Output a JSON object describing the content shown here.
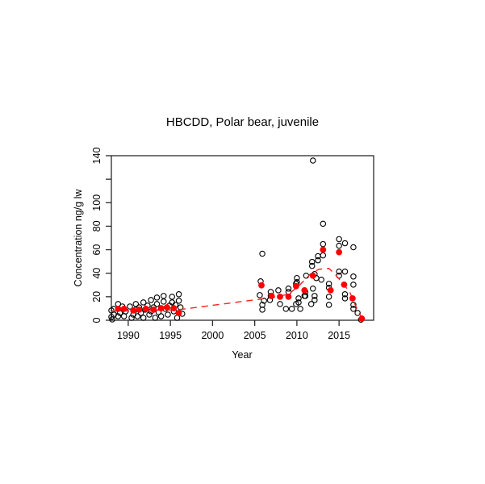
{
  "chart_data": {
    "type": "scatter",
    "title": "HBCDD, Polar bear, juvenile",
    "xlabel": "Year",
    "ylabel": "Concentration ng/g lw",
    "xlim": [
      1988,
      2019.1
    ],
    "ylim": [
      0,
      140
    ],
    "x_ticks": [
      1990,
      1995,
      2000,
      2005,
      2010,
      2015
    ],
    "x_tick_labels": [
      "1990",
      "1995",
      "2000",
      "2005",
      "2010",
      "2015"
    ],
    "y_ticks": [
      0,
      20,
      40,
      60,
      80,
      100,
      120,
      140
    ],
    "y_tick_labels": [
      "0",
      "20",
      "40",
      "60",
      "80",
      "100",
      "",
      "140"
    ],
    "grid": false,
    "legend": "none",
    "frame_color": "#2b2b2b",
    "series": [
      {
        "id": "samples",
        "marker": "circle-open",
        "color": "#000000",
        "points": [
          [
            1988.0,
            8.3
          ],
          [
            1988.0,
            2.8
          ],
          [
            1988.1,
            0.7
          ],
          [
            1988.3,
            9.7
          ],
          [
            1988.3,
            4.8
          ],
          [
            1988.8,
            13.8
          ],
          [
            1988.8,
            3.4
          ],
          [
            1989.0,
            6.2
          ],
          [
            1989.3,
            11.7
          ],
          [
            1989.5,
            3.4
          ],
          [
            1989.7,
            7.6
          ],
          [
            1990.2,
            11.7
          ],
          [
            1990.4,
            2.1
          ],
          [
            1990.6,
            4.8
          ],
          [
            1990.9,
            13.8
          ],
          [
            1990.9,
            9.0
          ],
          [
            1991.1,
            3.4
          ],
          [
            1991.3,
            11.0
          ],
          [
            1991.5,
            6.2
          ],
          [
            1991.8,
            15.2
          ],
          [
            1991.8,
            2.1
          ],
          [
            1992.0,
            9.0
          ],
          [
            1992.3,
            12.4
          ],
          [
            1992.5,
            4.8
          ],
          [
            1992.7,
            17.2
          ],
          [
            1992.7,
            7.6
          ],
          [
            1993.0,
            11.0
          ],
          [
            1993.2,
            2.1
          ],
          [
            1993.4,
            19.3
          ],
          [
            1993.4,
            13.8
          ],
          [
            1993.6,
            6.9
          ],
          [
            1993.9,
            3.4
          ],
          [
            1994.2,
            20.7
          ],
          [
            1994.2,
            15.9
          ],
          [
            1994.4,
            9.7
          ],
          [
            1994.7,
            4.8
          ],
          [
            1994.9,
            12.4
          ],
          [
            1995.2,
            20.0
          ],
          [
            1995.2,
            15.2
          ],
          [
            1995.4,
            7.6
          ],
          [
            1995.6,
            13.1
          ],
          [
            1995.8,
            2.1
          ],
          [
            1996.0,
            22.1
          ],
          [
            1996.0,
            16.6
          ],
          [
            1996.2,
            11.0
          ],
          [
            1996.4,
            5.5
          ],
          [
            2005.6,
            21.4
          ],
          [
            2005.7,
            33.1
          ],
          [
            2005.9,
            56.6
          ],
          [
            2005.9,
            13.1
          ],
          [
            2005.9,
            9.0
          ],
          [
            2006.1,
            16.6
          ],
          [
            2006.8,
            17.2
          ],
          [
            2006.9,
            24.1
          ],
          [
            2006.9,
            20.7
          ],
          [
            2007.8,
            25.5
          ],
          [
            2008.0,
            13.8
          ],
          [
            2008.7,
            9.7
          ],
          [
            2009.0,
            26.9
          ],
          [
            2009.0,
            24.1
          ],
          [
            2009.4,
            9.7
          ],
          [
            2009.9,
            31.0
          ],
          [
            2009.9,
            13.8
          ],
          [
            2010.0,
            35.9
          ],
          [
            2010.0,
            32.4
          ],
          [
            2010.2,
            18.6
          ],
          [
            2010.2,
            15.2
          ],
          [
            2010.4,
            9.7
          ],
          [
            2010.9,
            20.7
          ],
          [
            2011.0,
            24.1
          ],
          [
            2011.0,
            20.7
          ],
          [
            2011.1,
            37.9
          ],
          [
            2011.7,
            13.8
          ],
          [
            2011.8,
            49.7
          ],
          [
            2011.8,
            46.2
          ],
          [
            2011.9,
            26.9
          ],
          [
            2011.9,
            135.9
          ],
          [
            2012.1,
            39.3
          ],
          [
            2012.1,
            20.7
          ],
          [
            2012.1,
            17.2
          ],
          [
            2012.3,
            35.9
          ],
          [
            2012.5,
            54.5
          ],
          [
            2012.5,
            51.0
          ],
          [
            2012.9,
            34.5
          ],
          [
            2013.1,
            82.1
          ],
          [
            2013.1,
            64.8
          ],
          [
            2013.1,
            55.2
          ],
          [
            2013.8,
            31.0
          ],
          [
            2013.8,
            27.6
          ],
          [
            2013.8,
            20.0
          ],
          [
            2013.8,
            13.1
          ],
          [
            2015.0,
            69.0
          ],
          [
            2015.0,
            63.4
          ],
          [
            2015.0,
            41.4
          ],
          [
            2015.0,
            37.9
          ],
          [
            2015.7,
            65.5
          ],
          [
            2015.7,
            41.4
          ],
          [
            2015.7,
            22.1
          ],
          [
            2015.7,
            18.6
          ],
          [
            2016.7,
            62.1
          ],
          [
            2016.7,
            37.2
          ],
          [
            2016.7,
            30.3
          ],
          [
            2016.7,
            13.1
          ],
          [
            2016.7,
            9.7
          ],
          [
            2017.2,
            6.2
          ],
          [
            2017.6,
            0.5
          ]
        ]
      },
      {
        "id": "annual-median",
        "marker": "circle-filled",
        "color": "#ff0000",
        "points": [
          [
            1988.8,
            9.7
          ],
          [
            1989.5,
            9.7
          ],
          [
            1990.6,
            8.3
          ],
          [
            1991.3,
            9.0
          ],
          [
            1992.1,
            9.7
          ],
          [
            1993.0,
            9.0
          ],
          [
            1993.9,
            10.3
          ],
          [
            1994.6,
            11.0
          ],
          [
            1995.4,
            10.3
          ],
          [
            1996.0,
            6.2
          ],
          [
            2005.8,
            29.7
          ],
          [
            2007.0,
            20.7
          ],
          [
            2008.0,
            20.0
          ],
          [
            2009.0,
            20.0
          ],
          [
            2009.9,
            29.0
          ],
          [
            2010.9,
            25.5
          ],
          [
            2011.9,
            37.9
          ],
          [
            2013.1,
            60.0
          ],
          [
            2014.0,
            25.5
          ],
          [
            2015.0,
            57.9
          ],
          [
            2015.6,
            30.3
          ],
          [
            2016.6,
            18.6
          ],
          [
            2017.7,
            1.4
          ]
        ]
      },
      {
        "id": "trend",
        "marker": "line-dashed",
        "color": "#ff1f1f",
        "points": [
          [
            1988.0,
            7.6
          ],
          [
            1996.0,
            9.0
          ],
          [
            2005.6,
            17.9
          ],
          [
            2007.0,
            19.3
          ],
          [
            2009.0,
            22.1
          ],
          [
            2010.2,
            29.0
          ],
          [
            2011.6,
            39.3
          ],
          [
            2012.6,
            43.4
          ],
          [
            2013.8,
            44.1
          ],
          [
            2014.5,
            39.3
          ],
          [
            2015.5,
            31.0
          ],
          [
            2016.3,
            23.4
          ],
          [
            2017.0,
            11.7
          ],
          [
            2017.7,
            2.1
          ]
        ]
      }
    ]
  }
}
